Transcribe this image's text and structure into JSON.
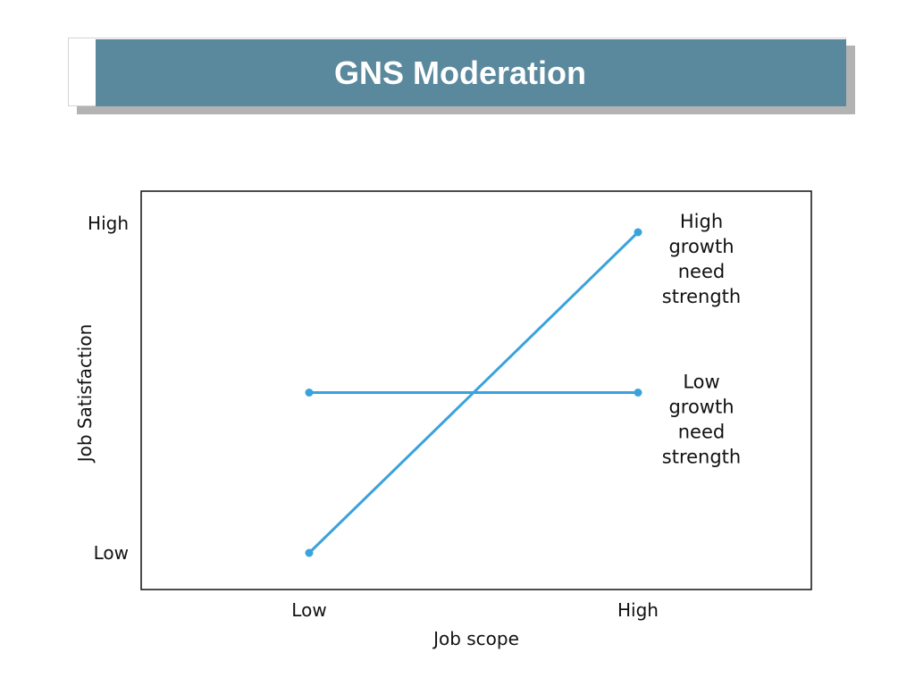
{
  "slide": {
    "title": "GNS Moderation"
  },
  "colors": {
    "title_bar": "#5a889c",
    "series_line": "#3aa2dc",
    "frame": "#111111"
  },
  "chart_data": {
    "type": "line",
    "title": "",
    "xlabel": "Job scope",
    "ylabel": "Job Satisfaction",
    "x_categories": [
      "Low",
      "High"
    ],
    "y_categories": [
      "Low",
      "High"
    ],
    "ylim": [
      0,
      1
    ],
    "grid": false,
    "series": [
      {
        "name": "High growth need strength",
        "label_lines": [
          "High",
          "growth",
          "need",
          "strength"
        ],
        "values": [
          0,
          1
        ]
      },
      {
        "name": "Low growth need strength",
        "label_lines": [
          "Low",
          "growth",
          "need",
          "strength"
        ],
        "values": [
          0.5,
          0.5
        ]
      }
    ]
  }
}
